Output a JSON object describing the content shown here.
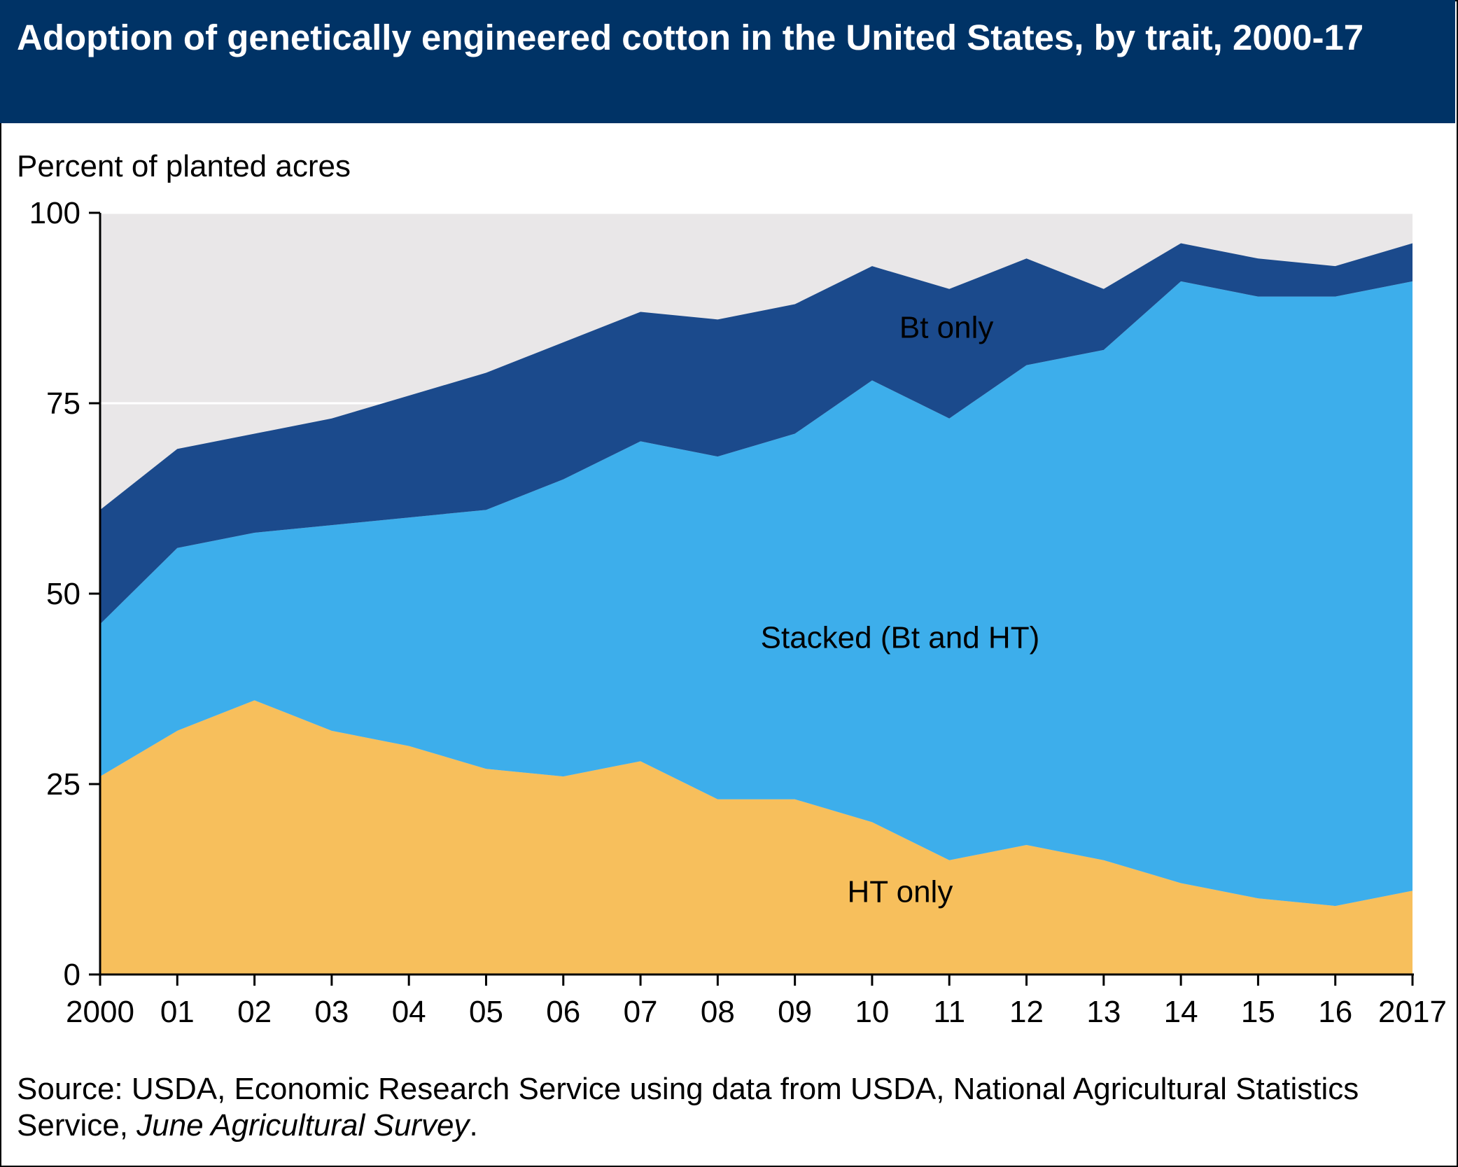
{
  "chart_data": {
    "type": "area",
    "stacked": true,
    "title": "Adoption of genetically engineered cotton in the United States, by trait, 2000-17",
    "ylabel": "Percent of planted acres",
    "xlabel": "",
    "ylim": [
      0,
      100
    ],
    "y_ticks": [
      0,
      25,
      50,
      75,
      100
    ],
    "x": [
      2000,
      2001,
      2002,
      2003,
      2004,
      2005,
      2006,
      2007,
      2008,
      2009,
      2010,
      2011,
      2012,
      2013,
      2014,
      2015,
      2016,
      2017
    ],
    "x_tick_labels": [
      "2000",
      "01",
      "02",
      "03",
      "04",
      "05",
      "06",
      "07",
      "08",
      "09",
      "10",
      "11",
      "12",
      "13",
      "14",
      "15",
      "16",
      "2017"
    ],
    "grid": "horizontal",
    "series": [
      {
        "name": "HT only",
        "color": "#f7bf5c",
        "values": [
          26,
          32,
          36,
          32,
          30,
          27,
          26,
          28,
          23,
          23,
          20,
          15,
          17,
          15,
          12,
          10,
          9,
          11
        ]
      },
      {
        "name": "Stacked (Bt and HT)",
        "color": "#3daeeb",
        "values": [
          20,
          24,
          22,
          27,
          30,
          34,
          39,
          42,
          45,
          48,
          58,
          58,
          63,
          67,
          79,
          79,
          80,
          80
        ]
      },
      {
        "name": "Bt only",
        "color": "#1b4a8c",
        "values": [
          15,
          13,
          13,
          14,
          16,
          18,
          18,
          17,
          18,
          17,
          15,
          17,
          14,
          8,
          5,
          5,
          4,
          5
        ]
      }
    ]
  },
  "source": {
    "prefix": "Source: USDA, Economic Research Service using data from USDA, National Agricultural Statistics Service, ",
    "publication": "June Agricultural Survey",
    "suffix": "."
  },
  "colors": {
    "title_bar": "#003366",
    "plot_background": "#e9e7e8",
    "gridline": "#ffffff"
  }
}
